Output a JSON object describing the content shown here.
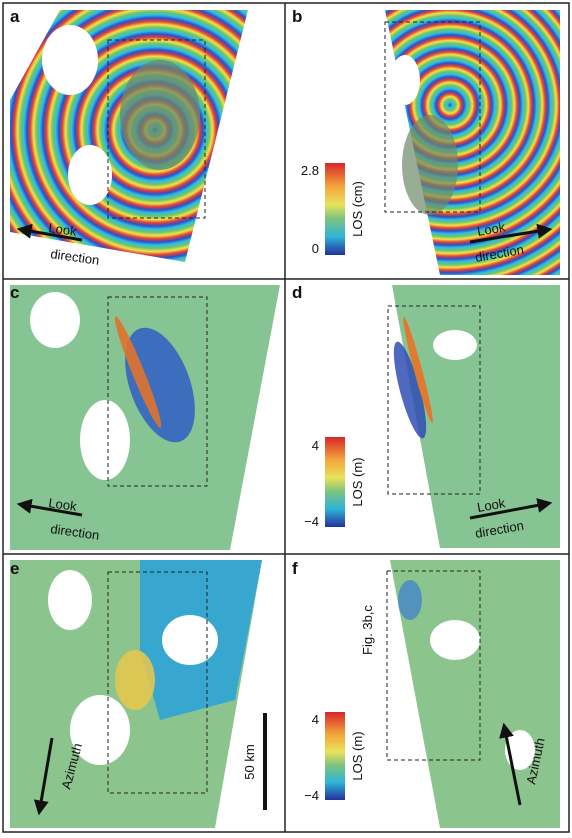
{
  "panels": [
    {
      "label": "a",
      "arrow_text": [
        "Look",
        "direction"
      ]
    },
    {
      "label": "b",
      "colorbar": {
        "label": "LOS (cm)",
        "ticks": [
          "2.8",
          "0"
        ]
      },
      "arrow_text": [
        "Look",
        "direction"
      ]
    },
    {
      "label": "c",
      "arrow_text": [
        "Look",
        "direction"
      ]
    },
    {
      "label": "d",
      "colorbar": {
        "label": "LOS (m)",
        "ticks": [
          "4",
          "−4"
        ]
      },
      "arrow_text": [
        "Look",
        "direction"
      ]
    },
    {
      "label": "e",
      "arrow_text": [
        "Azimuth"
      ],
      "scale_bar": "50 km"
    },
    {
      "label": "f",
      "colorbar": {
        "label": "LOS (m)",
        "ticks": [
          "4",
          "−4"
        ]
      },
      "arrow_text": [
        "Azimuth"
      ],
      "box_label": "Fig. 3b,c"
    }
  ]
}
